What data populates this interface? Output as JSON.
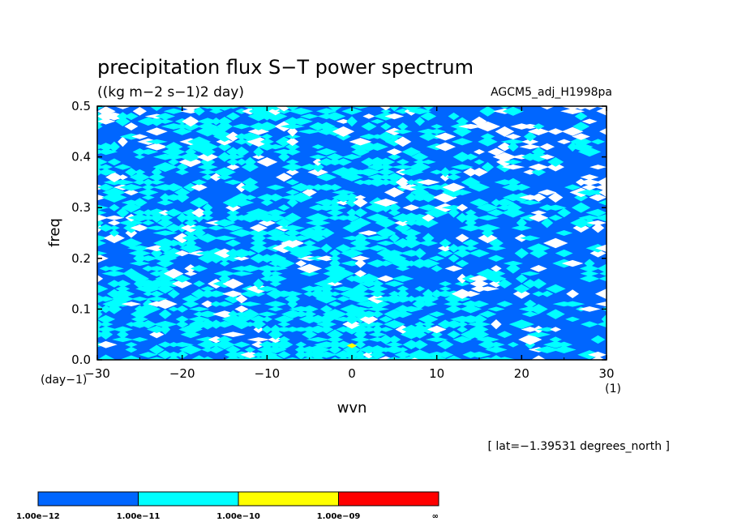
{
  "chart_data": {
    "type": "heatmap",
    "title": "precipitation flux S−T power spectrum",
    "subtitle": "((kg m−2 s−1)2 day)",
    "run_label": "AGCM5_adj_H1998pa",
    "xlabel": "wvn",
    "ylabel": "freq",
    "x_unit": "(1)",
    "y_unit": "(day−1)",
    "annotation": "[ lat=−1.39531 degrees_north ]",
    "xlim": [
      -30,
      30
    ],
    "ylim": [
      0.0,
      0.5
    ],
    "x_ticks": [
      -30,
      -20,
      -10,
      0,
      10,
      20,
      30
    ],
    "x_tick_labels": [
      "−30",
      "−20",
      "−10",
      "0",
      "10",
      "20",
      "30"
    ],
    "y_ticks": [
      0.0,
      0.1,
      0.2,
      0.3,
      0.4,
      0.5
    ],
    "y_tick_labels": [
      "0.0",
      "0.1",
      "0.2",
      "0.3",
      "0.4",
      "0.5"
    ],
    "colorbar": {
      "levels": [
        "1.00e−12",
        "1.00e−11",
        "1.00e−10",
        "1.00e−09",
        "∞"
      ],
      "colors": [
        "#0066ff",
        "#00ffff",
        "#ffff00",
        "#ff0000"
      ]
    },
    "below_min_color": "#ffffff"
  }
}
